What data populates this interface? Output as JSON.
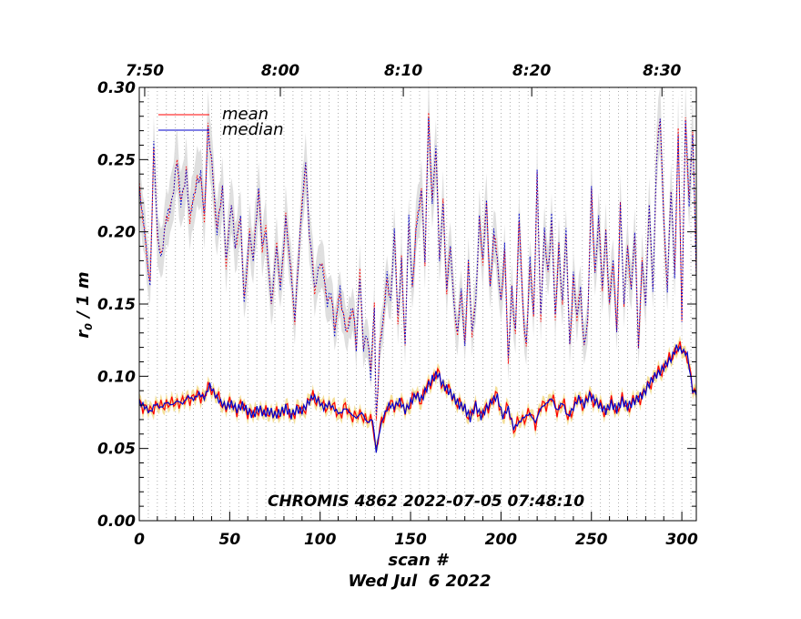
{
  "chart_data": {
    "type": "line",
    "xlabel": "scan #",
    "ylabel": "r",
    "ylabel_sub": "0",
    "ylabel_suffix": " / 1 m",
    "date_label": "Wed Jul  6 2022",
    "annotation": "CHROMIS 4862 2022-07-05 07:48:10",
    "xlim": [
      0,
      308
    ],
    "ylim": [
      0.0,
      0.3
    ],
    "x_ticks": [
      0,
      50,
      100,
      150,
      200,
      250,
      300
    ],
    "x_tick_labels": [
      "0",
      "50",
      "100",
      "150",
      "200",
      "250",
      "300"
    ],
    "y_ticks": [
      0.0,
      0.05,
      0.1,
      0.15,
      0.2,
      0.25,
      0.3
    ],
    "y_tick_labels": [
      "0.00",
      "0.05",
      "0.10",
      "0.15",
      "0.20",
      "0.25",
      "0.30"
    ],
    "top_axis": {
      "ticks_scan": [
        3,
        78,
        146,
        217,
        289
      ],
      "labels": [
        "7:50",
        "8:00",
        "8:10",
        "8:20",
        "8:30"
      ]
    },
    "grid": "vertical dotted",
    "legend_position": "top-left",
    "upper_knots_x": [
      0,
      3,
      6,
      8,
      10,
      12,
      15,
      18,
      21,
      23,
      26,
      28,
      31,
      34,
      36,
      38,
      40,
      43,
      46,
      48,
      51,
      53,
      56,
      58,
      61,
      63,
      66,
      68,
      70,
      73,
      76,
      78,
      81,
      84,
      86,
      89,
      92,
      94,
      97,
      100,
      102,
      104,
      106,
      108,
      111,
      113,
      115,
      118,
      120,
      122,
      124,
      126,
      128,
      130,
      131,
      133,
      135,
      137,
      139,
      141,
      143,
      145,
      147,
      149,
      151,
      153,
      156,
      158,
      160,
      162,
      164,
      166,
      168,
      170,
      172,
      174,
      176,
      178,
      180,
      182,
      184,
      186,
      188,
      190,
      192,
      194,
      196,
      198,
      200,
      202,
      204,
      206,
      208,
      210,
      212,
      214,
      216,
      218,
      220,
      222,
      224,
      226,
      228,
      230,
      232,
      234,
      236,
      238,
      240,
      242,
      244,
      246,
      248,
      250,
      252,
      254,
      256,
      258,
      260,
      262,
      264,
      266,
      268,
      270,
      272,
      274,
      276,
      278,
      280,
      282,
      284,
      286,
      288,
      290,
      292,
      294,
      296,
      298,
      300,
      302,
      304,
      306,
      308
    ],
    "upper_knots_y": [
      0.23,
      0.2,
      0.16,
      0.26,
      0.2,
      0.18,
      0.21,
      0.22,
      0.25,
      0.22,
      0.24,
      0.21,
      0.23,
      0.24,
      0.21,
      0.27,
      0.25,
      0.2,
      0.23,
      0.18,
      0.22,
      0.19,
      0.21,
      0.15,
      0.2,
      0.18,
      0.23,
      0.19,
      0.2,
      0.15,
      0.19,
      0.16,
      0.21,
      0.17,
      0.14,
      0.2,
      0.25,
      0.2,
      0.16,
      0.18,
      0.17,
      0.15,
      0.16,
      0.13,
      0.16,
      0.14,
      0.13,
      0.15,
      0.12,
      0.17,
      0.12,
      0.13,
      0.1,
      0.15,
      0.07,
      0.12,
      0.14,
      0.17,
      0.15,
      0.2,
      0.14,
      0.18,
      0.12,
      0.21,
      0.16,
      0.2,
      0.23,
      0.18,
      0.28,
      0.22,
      0.26,
      0.18,
      0.22,
      0.16,
      0.19,
      0.15,
      0.13,
      0.16,
      0.12,
      0.18,
      0.13,
      0.15,
      0.21,
      0.18,
      0.22,
      0.16,
      0.2,
      0.18,
      0.15,
      0.19,
      0.11,
      0.16,
      0.13,
      0.21,
      0.15,
      0.12,
      0.18,
      0.14,
      0.24,
      0.14,
      0.2,
      0.17,
      0.21,
      0.14,
      0.19,
      0.15,
      0.2,
      0.12,
      0.17,
      0.14,
      0.16,
      0.12,
      0.14,
      0.23,
      0.17,
      0.21,
      0.16,
      0.2,
      0.15,
      0.18,
      0.13,
      0.22,
      0.15,
      0.19,
      0.16,
      0.2,
      0.12,
      0.18,
      0.15,
      0.22,
      0.16,
      0.25,
      0.28,
      0.21,
      0.16,
      0.23,
      0.17,
      0.27,
      0.14,
      0.28,
      0.22,
      0.27,
      0.17
    ],
    "lower_knots_x": [
      0,
      3,
      6,
      9,
      12,
      15,
      18,
      21,
      24,
      27,
      30,
      33,
      36,
      39,
      42,
      45,
      48,
      51,
      54,
      57,
      60,
      63,
      66,
      69,
      72,
      75,
      78,
      81,
      84,
      87,
      90,
      93,
      96,
      99,
      102,
      105,
      108,
      111,
      114,
      117,
      120,
      123,
      126,
      129,
      131,
      133,
      135,
      138,
      141,
      144,
      147,
      150,
      153,
      156,
      159,
      162,
      165,
      168,
      171,
      174,
      177,
      180,
      183,
      186,
      189,
      192,
      195,
      198,
      201,
      204,
      207,
      210,
      213,
      216,
      219,
      222,
      225,
      228,
      231,
      234,
      237,
      240,
      243,
      246,
      249,
      252,
      255,
      258,
      261,
      264,
      267,
      270,
      273,
      276,
      279,
      282,
      285,
      288,
      291,
      294,
      297,
      300,
      303,
      306,
      308
    ],
    "lower_knots_y": [
      0.082,
      0.079,
      0.075,
      0.081,
      0.078,
      0.082,
      0.08,
      0.083,
      0.081,
      0.086,
      0.084,
      0.088,
      0.085,
      0.094,
      0.087,
      0.082,
      0.079,
      0.081,
      0.077,
      0.08,
      0.076,
      0.073,
      0.078,
      0.074,
      0.076,
      0.073,
      0.075,
      0.078,
      0.073,
      0.077,
      0.076,
      0.081,
      0.086,
      0.083,
      0.078,
      0.081,
      0.077,
      0.074,
      0.078,
      0.074,
      0.071,
      0.075,
      0.068,
      0.07,
      0.048,
      0.063,
      0.072,
      0.08,
      0.079,
      0.083,
      0.076,
      0.082,
      0.087,
      0.084,
      0.092,
      0.098,
      0.102,
      0.094,
      0.09,
      0.085,
      0.08,
      0.078,
      0.071,
      0.08,
      0.072,
      0.078,
      0.083,
      0.086,
      0.072,
      0.078,
      0.064,
      0.068,
      0.072,
      0.074,
      0.068,
      0.078,
      0.081,
      0.085,
      0.076,
      0.082,
      0.072,
      0.078,
      0.085,
      0.08,
      0.087,
      0.083,
      0.079,
      0.076,
      0.081,
      0.077,
      0.083,
      0.079,
      0.082,
      0.085,
      0.088,
      0.095,
      0.1,
      0.103,
      0.108,
      0.112,
      0.12,
      0.118,
      0.115,
      0.09,
      0.088
    ],
    "series": [
      {
        "name": "mean",
        "color": "#ff0000"
      },
      {
        "name": "median",
        "color": "#0000cc"
      }
    ],
    "band_colors": {
      "upper": "#dcdcdc",
      "lower": "#f3dc8e"
    }
  }
}
